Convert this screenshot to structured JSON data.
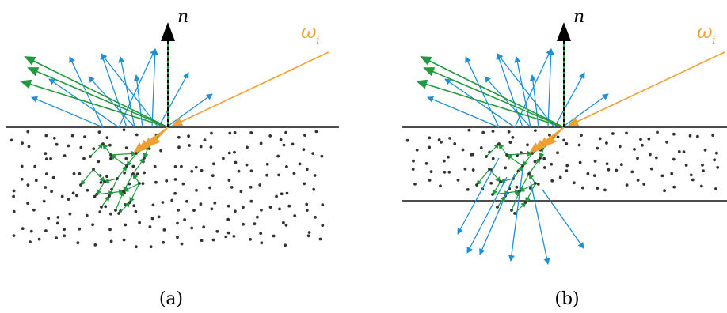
{
  "colors": {
    "background": "#ffffff",
    "surface_line": "#333333",
    "particle": "#333333",
    "incident_light": "#f0a030",
    "normal_arrow": "#000000",
    "specular_rays": "#1f9a3c",
    "scattered_rays": "#1f8fd6",
    "internal_paths": "#1f9a3c"
  },
  "labels": {
    "normal": "n",
    "incident_omega": "ω",
    "incident_sub": "i"
  },
  "panels": [
    {
      "id": "a",
      "caption": "(a)",
      "description_type": "semi-infinite medium"
    },
    {
      "id": "b",
      "caption": "(b)",
      "description_type": "thin slab with transmission"
    }
  ],
  "icons": {
    "normal_arrowhead": "arrow-up-icon",
    "ray_arrowhead": "arrow-icon"
  }
}
